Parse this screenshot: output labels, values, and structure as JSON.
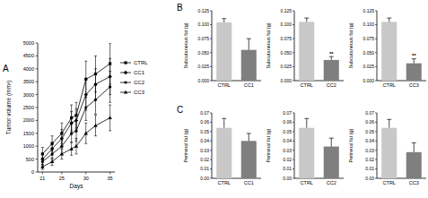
{
  "panel_labels": [
    "A",
    "B",
    "C"
  ],
  "chart_data": [
    {
      "type": "line",
      "x_label": "Days",
      "y_label": "Tumor volume (mm³)",
      "xlim": [
        20,
        36
      ],
      "xticks": [
        21,
        25,
        30,
        35
      ],
      "ylim": [
        0,
        5000
      ],
      "yticks": [
        0,
        500,
        1000,
        1500,
        2000,
        2500,
        3000,
        3500,
        4000,
        4500,
        5000
      ],
      "legend": "right",
      "x": [
        21,
        23,
        25,
        27,
        28,
        30,
        32,
        35
      ],
      "series": [
        {
          "name": "CTRL",
          "color": "#000000",
          "marker": "square",
          "values": [
            700,
            1100,
            1500,
            2100,
            2200,
            3600,
            3800,
            4200
          ],
          "errors": [
            250,
            300,
            400,
            500,
            500,
            700,
            700,
            800
          ]
        },
        {
          "name": "CC1",
          "color": "#000000",
          "marker": "diamond",
          "values": [
            500,
            900,
            1300,
            1900,
            2000,
            3000,
            3400,
            3700
          ],
          "errors": [
            200,
            250,
            350,
            450,
            450,
            600,
            600,
            700
          ]
        },
        {
          "name": "CC2",
          "color": "#000000",
          "marker": "circle",
          "values": [
            400,
            700,
            1000,
            1500,
            1600,
            2500,
            2800,
            3300
          ],
          "errors": [
            150,
            200,
            300,
            350,
            400,
            500,
            550,
            600
          ]
        },
        {
          "name": "CC3",
          "color": "#000000",
          "marker": "triangle",
          "values": [
            200,
            400,
            700,
            900,
            1000,
            1500,
            1800,
            2100
          ],
          "errors": [
            100,
            150,
            200,
            250,
            300,
            400,
            400,
            500
          ]
        }
      ]
    },
    {
      "type": "bar",
      "y_label": "Subcutaneous fat (g)",
      "categories": [
        "CTRL",
        "CC1"
      ],
      "values": [
        0.104,
        0.055
      ],
      "errors": [
        0.007,
        0.02
      ],
      "colors": [
        "#c8c8c8",
        "#7f7f7f"
      ],
      "ylim": [
        0,
        0.125
      ],
      "yticks": [
        {
          "value": 0,
          "label": "0.000"
        },
        {
          "value": 0.025,
          "label": "0.025"
        },
        {
          "value": 0.05,
          "label": "0.050"
        },
        {
          "value": 0.075,
          "label": "0.075"
        },
        {
          "value": 0.1,
          "label": "0.100"
        },
        {
          "value": 0.125,
          "label": "0.125"
        }
      ]
    },
    {
      "type": "bar",
      "y_label": "Subcutaneous fat (g)",
      "categories": [
        "CTRL",
        "CC2"
      ],
      "values": [
        0.105,
        0.037
      ],
      "errors": [
        0.007,
        0.006
      ],
      "colors": [
        "#c8c8c8",
        "#7f7f7f"
      ],
      "ylim": [
        0,
        0.125
      ],
      "yticks": [
        {
          "value": 0,
          "label": "0.000"
        },
        {
          "value": 0.025,
          "label": "0.025"
        },
        {
          "value": 0.05,
          "label": "0.050"
        },
        {
          "value": 0.075,
          "label": "0.075"
        },
        {
          "value": 0.1,
          "label": "0.100"
        },
        {
          "value": 0.125,
          "label": "0.125"
        }
      ],
      "annotations": [
        {
          "text": "**",
          "category": "CC2"
        }
      ]
    },
    {
      "type": "bar",
      "y_label": "Subcutaneous fat (g)",
      "categories": [
        "CTRL",
        "CC3"
      ],
      "values": [
        0.105,
        0.031
      ],
      "errors": [
        0.007,
        0.008
      ],
      "colors": [
        "#c8c8c8",
        "#7f7f7f"
      ],
      "ylim": [
        0,
        0.125
      ],
      "yticks": [
        {
          "value": 0,
          "label": "0.000"
        },
        {
          "value": 0.025,
          "label": "0.025"
        },
        {
          "value": 0.05,
          "label": "0.050"
        },
        {
          "value": 0.075,
          "label": "0.075"
        },
        {
          "value": 0.1,
          "label": "0.100"
        },
        {
          "value": 0.125,
          "label": "0.125"
        }
      ],
      "annotations": [
        {
          "text": "**",
          "category": "CC3"
        }
      ]
    },
    {
      "type": "bar",
      "y_label": "Perirenal fat (g)",
      "categories": [
        "CTRL",
        "CC1"
      ],
      "values": [
        0.054,
        0.04
      ],
      "errors": [
        0.01,
        0.008
      ],
      "colors": [
        "#c8c8c8",
        "#7f7f7f"
      ],
      "ylim": [
        0,
        0.07
      ],
      "yticks": [
        {
          "value": 0,
          "label": "0.00"
        },
        {
          "value": 0.01,
          "label": "0.01"
        },
        {
          "value": 0.02,
          "label": "0.02"
        },
        {
          "value": 0.03,
          "label": "0.03"
        },
        {
          "value": 0.04,
          "label": "0.04"
        },
        {
          "value": 0.05,
          "label": "0.05"
        },
        {
          "value": 0.06,
          "label": "0.06"
        },
        {
          "value": 0.07,
          "label": "0.07"
        }
      ]
    },
    {
      "type": "bar",
      "y_label": "Perirenal fat (g)",
      "categories": [
        "CTRL",
        "CC2"
      ],
      "values": [
        0.054,
        0.034
      ],
      "errors": [
        0.01,
        0.009
      ],
      "colors": [
        "#c8c8c8",
        "#7f7f7f"
      ],
      "ylim": [
        0,
        0.07
      ],
      "yticks": [
        {
          "value": 0,
          "label": "0.00"
        },
        {
          "value": 0.01,
          "label": "0.01"
        },
        {
          "value": 0.02,
          "label": "0.02"
        },
        {
          "value": 0.03,
          "label": "0.03"
        },
        {
          "value": 0.04,
          "label": "0.04"
        },
        {
          "value": 0.05,
          "label": "0.05"
        },
        {
          "value": 0.06,
          "label": "0.06"
        },
        {
          "value": 0.07,
          "label": "0.07"
        }
      ]
    },
    {
      "type": "bar",
      "y_label": "Perirenal fat (g)",
      "categories": [
        "CTRL",
        "CC3"
      ],
      "values": [
        0.054,
        0.028
      ],
      "errors": [
        0.009,
        0.01
      ],
      "colors": [
        "#c8c8c8",
        "#7f7f7f"
      ],
      "ylim": [
        0,
        0.07
      ],
      "yticks": [
        {
          "value": 0,
          "label": "0.00"
        },
        {
          "value": 0.01,
          "label": "0.01"
        },
        {
          "value": 0.02,
          "label": "0.02"
        },
        {
          "value": 0.03,
          "label": "0.03"
        },
        {
          "value": 0.04,
          "label": "0.04"
        },
        {
          "value": 0.05,
          "label": "0.05"
        },
        {
          "value": 0.06,
          "label": "0.06"
        },
        {
          "value": 0.07,
          "label": "0.07"
        }
      ]
    }
  ]
}
